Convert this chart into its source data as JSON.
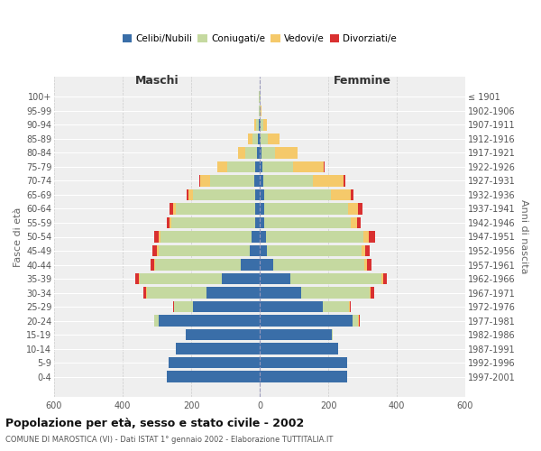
{
  "age_groups": [
    "0-4",
    "5-9",
    "10-14",
    "15-19",
    "20-24",
    "25-29",
    "30-34",
    "35-39",
    "40-44",
    "45-49",
    "50-54",
    "55-59",
    "60-64",
    "65-69",
    "70-74",
    "75-79",
    "80-84",
    "85-89",
    "90-94",
    "95-99",
    "100+"
  ],
  "birth_years": [
    "1997-2001",
    "1992-1996",
    "1987-1991",
    "1982-1986",
    "1977-1981",
    "1972-1976",
    "1967-1971",
    "1962-1966",
    "1957-1961",
    "1952-1956",
    "1947-1951",
    "1942-1946",
    "1937-1941",
    "1932-1936",
    "1927-1931",
    "1922-1926",
    "1917-1921",
    "1912-1916",
    "1907-1911",
    "1902-1906",
    "≤ 1901"
  ],
  "male": {
    "celibi": [
      270,
      265,
      245,
      215,
      295,
      195,
      155,
      110,
      55,
      30,
      25,
      12,
      14,
      14,
      15,
      14,
      8,
      4,
      3,
      1,
      1
    ],
    "coniugati": [
      0,
      0,
      0,
      2,
      12,
      55,
      175,
      240,
      250,
      265,
      265,
      245,
      230,
      180,
      130,
      80,
      35,
      18,
      8,
      2,
      1
    ],
    "vedovi": [
      0,
      0,
      0,
      0,
      0,
      0,
      1,
      2,
      2,
      4,
      5,
      6,
      8,
      15,
      30,
      30,
      20,
      12,
      5,
      0,
      0
    ],
    "divorziati": [
      0,
      0,
      0,
      0,
      1,
      2,
      8,
      10,
      12,
      14,
      14,
      8,
      12,
      4,
      2,
      0,
      0,
      0,
      0,
      0,
      0
    ]
  },
  "female": {
    "nubili": [
      255,
      255,
      230,
      210,
      270,
      185,
      120,
      90,
      40,
      22,
      18,
      12,
      12,
      12,
      10,
      8,
      5,
      3,
      2,
      1,
      1
    ],
    "coniugate": [
      0,
      0,
      0,
      2,
      18,
      75,
      200,
      265,
      265,
      275,
      285,
      255,
      245,
      195,
      145,
      90,
      40,
      20,
      8,
      2,
      1
    ],
    "vedove": [
      0,
      0,
      0,
      0,
      2,
      2,
      3,
      5,
      8,
      10,
      15,
      18,
      30,
      60,
      90,
      90,
      65,
      35,
      10,
      1,
      0
    ],
    "divorziate": [
      0,
      0,
      0,
      0,
      1,
      3,
      10,
      12,
      12,
      14,
      18,
      10,
      14,
      6,
      4,
      2,
      0,
      0,
      0,
      0,
      0
    ]
  },
  "colors": {
    "celibi": "#3a6ea8",
    "coniugati": "#c5d9a0",
    "vedovi": "#f5c96a",
    "divorziati": "#d93030"
  },
  "title": "Popolazione per età, sesso e stato civile - 2002",
  "subtitle": "COMUNE DI MAROSTICA (VI) - Dati ISTAT 1° gennaio 2002 - Elaborazione TUTTITALIA.IT",
  "xlabel_left": "Maschi",
  "xlabel_right": "Femmine",
  "ylabel_left": "Fasce di età",
  "ylabel_right": "Anni di nascita",
  "xlim": 600,
  "legend_labels": [
    "Celibi/Nubili",
    "Coniugati/e",
    "Vedovi/e",
    "Divorziati/e"
  ],
  "background_color": "#ffffff",
  "plot_bg_color": "#efefef"
}
